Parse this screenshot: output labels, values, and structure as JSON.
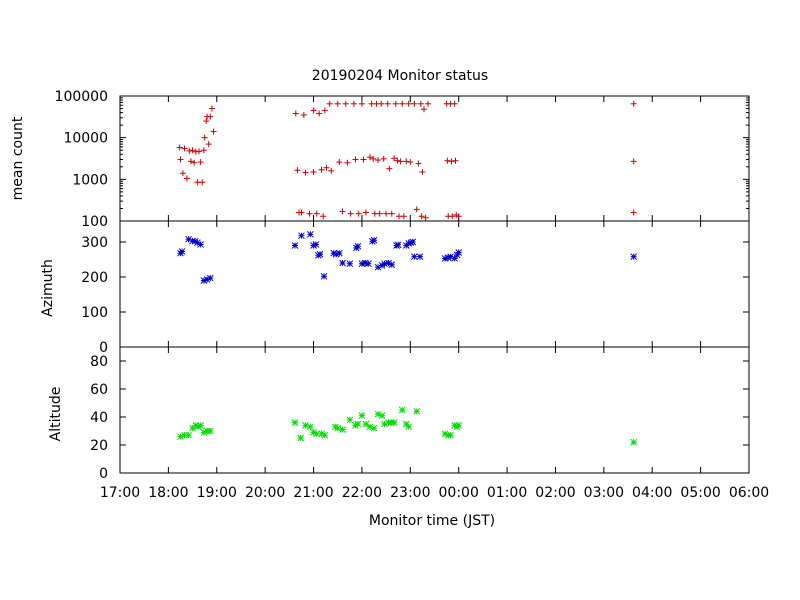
{
  "chart_data": {
    "type": "scatter",
    "title": "20190204 Monitor status",
    "xlabel": "Monitor time (JST)",
    "x_tick_labels": [
      "17:00",
      "18:00",
      "19:00",
      "20:00",
      "21:00",
      "22:00",
      "23:00",
      "00:00",
      "01:00",
      "02:00",
      "03:00",
      "04:00",
      "05:00",
      "06:00"
    ],
    "xlim": [
      "17:00",
      "06:00"
    ],
    "grid": false,
    "panels": [
      {
        "ylabel": "mean count",
        "yscale": "log",
        "ylim": [
          100,
          100000
        ],
        "y_tick_labels": [
          "100",
          "1000",
          "10000",
          "100000"
        ],
        "marker": "+",
        "color": "#cc0000",
        "points": [
          [
            "18:14",
            5800
          ],
          [
            "18:15",
            3000
          ],
          [
            "18:18",
            1400
          ],
          [
            "18:20",
            5500
          ],
          [
            "18:23",
            1050
          ],
          [
            "18:26",
            4800
          ],
          [
            "18:28",
            2700
          ],
          [
            "18:30",
            5000
          ],
          [
            "18:32",
            2500
          ],
          [
            "18:34",
            4600
          ],
          [
            "18:36",
            850
          ],
          [
            "18:38",
            4700
          ],
          [
            "18:40",
            2600
          ],
          [
            "18:42",
            850
          ],
          [
            "18:44",
            5000
          ],
          [
            "18:45",
            10000
          ],
          [
            "18:47",
            25000
          ],
          [
            "18:48",
            32000
          ],
          [
            "18:50",
            7000
          ],
          [
            "18:52",
            32000
          ],
          [
            "18:54",
            50000
          ],
          [
            "18:56",
            14000
          ],
          [
            "20:38",
            38000
          ],
          [
            "20:40",
            1650
          ],
          [
            "20:42",
            160
          ],
          [
            "20:45",
            160
          ],
          [
            "20:48",
            35000
          ],
          [
            "20:50",
            1450
          ],
          [
            "20:55",
            150
          ],
          [
            "21:00",
            45000
          ],
          [
            "21:00",
            1500
          ],
          [
            "21:04",
            150
          ],
          [
            "21:07",
            38000
          ],
          [
            "21:10",
            1700
          ],
          [
            "21:12",
            130
          ],
          [
            "21:14",
            45000
          ],
          [
            "21:16",
            1900
          ],
          [
            "21:20",
            65000
          ],
          [
            "21:22",
            1600
          ],
          [
            "21:30",
            65000
          ],
          [
            "21:32",
            2600
          ],
          [
            "21:36",
            170
          ],
          [
            "21:40",
            65000
          ],
          [
            "21:42",
            2500
          ],
          [
            "21:46",
            150
          ],
          [
            "21:50",
            65000
          ],
          [
            "21:52",
            3000
          ],
          [
            "21:56",
            150
          ],
          [
            "22:00",
            65000
          ],
          [
            "22:02",
            3000
          ],
          [
            "22:05",
            160
          ],
          [
            "22:10",
            3400
          ],
          [
            "22:12",
            65000
          ],
          [
            "22:14",
            3100
          ],
          [
            "22:16",
            150
          ],
          [
            "22:18",
            65000
          ],
          [
            "22:20",
            2900
          ],
          [
            "22:22",
            150
          ],
          [
            "22:24",
            65000
          ],
          [
            "22:27",
            3100
          ],
          [
            "22:30",
            150
          ],
          [
            "22:32",
            65000
          ],
          [
            "22:34",
            1800
          ],
          [
            "22:37",
            150
          ],
          [
            "22:40",
            3200
          ],
          [
            "22:42",
            65000
          ],
          [
            "22:44",
            2800
          ],
          [
            "22:46",
            130
          ],
          [
            "22:48",
            2700
          ],
          [
            "22:50",
            65000
          ],
          [
            "22:52",
            130
          ],
          [
            "22:55",
            2700
          ],
          [
            "22:58",
            65000
          ],
          [
            "23:00",
            2600
          ],
          [
            "23:05",
            65000
          ],
          [
            "23:08",
            190
          ],
          [
            "23:10",
            2400
          ],
          [
            "23:13",
            65000
          ],
          [
            "23:14",
            130
          ],
          [
            "23:15",
            1500
          ],
          [
            "23:17",
            48000
          ],
          [
            "23:19",
            120
          ],
          [
            "23:22",
            65000
          ],
          [
            "23:45",
            65000
          ],
          [
            "23:46",
            2800
          ],
          [
            "23:47",
            130
          ],
          [
            "23:50",
            65000
          ],
          [
            "23:51",
            2700
          ],
          [
            "23:52",
            130
          ],
          [
            "23:55",
            65000
          ],
          [
            "23:56",
            2800
          ],
          [
            "23:57",
            140
          ],
          [
            "00:00",
            130
          ],
          [
            "03:37",
            65000
          ],
          [
            "03:37",
            2700
          ],
          [
            "03:37",
            160
          ]
        ]
      },
      {
        "ylabel": "Azimuth",
        "yscale": "linear",
        "ylim": [
          0,
          360
        ],
        "y_tick_labels": [
          "0",
          "100",
          "200",
          "300"
        ],
        "marker": "*",
        "color": "#0000cc",
        "points": [
          [
            "18:15",
            268
          ],
          [
            "18:17",
            273
          ],
          [
            "18:25",
            308
          ],
          [
            "18:30",
            303
          ],
          [
            "18:33",
            302
          ],
          [
            "18:36",
            298
          ],
          [
            "18:40",
            293
          ],
          [
            "18:44",
            190
          ],
          [
            "18:48",
            193
          ],
          [
            "18:52",
            197
          ],
          [
            "20:37",
            290
          ],
          [
            "20:45",
            318
          ],
          [
            "20:56",
            322
          ],
          [
            "21:00",
            290
          ],
          [
            "21:03",
            293
          ],
          [
            "21:06",
            262
          ],
          [
            "21:08",
            265
          ],
          [
            "21:13",
            202
          ],
          [
            "21:25",
            268
          ],
          [
            "21:28",
            265
          ],
          [
            "21:32",
            268
          ],
          [
            "21:36",
            240
          ],
          [
            "21:45",
            238
          ],
          [
            "21:53",
            283
          ],
          [
            "21:55",
            288
          ],
          [
            "22:00",
            238
          ],
          [
            "22:04",
            240
          ],
          [
            "22:08",
            238
          ],
          [
            "22:13",
            302
          ],
          [
            "22:15",
            305
          ],
          [
            "22:20",
            228
          ],
          [
            "22:25",
            233
          ],
          [
            "22:28",
            238
          ],
          [
            "22:33",
            240
          ],
          [
            "22:37",
            235
          ],
          [
            "22:43",
            290
          ],
          [
            "22:45",
            292
          ],
          [
            "22:55",
            290
          ],
          [
            "22:58",
            296
          ],
          [
            "23:01",
            298
          ],
          [
            "23:03",
            300
          ],
          [
            "23:05",
            258
          ],
          [
            "23:12",
            258
          ],
          [
            "23:43",
            253
          ],
          [
            "23:47",
            255
          ],
          [
            "23:50",
            258
          ],
          [
            "23:55",
            253
          ],
          [
            "23:58",
            263
          ],
          [
            "00:00",
            270
          ],
          [
            "03:37",
            258
          ]
        ]
      },
      {
        "ylabel": "Altitude",
        "yscale": "linear",
        "ylim": [
          0,
          90
        ],
        "y_tick_labels": [
          "0",
          "20",
          "40",
          "60",
          "80"
        ],
        "marker": "*",
        "color": "#00dd00",
        "points": [
          [
            "18:15",
            26
          ],
          [
            "18:20",
            27
          ],
          [
            "18:25",
            27
          ],
          [
            "18:30",
            32
          ],
          [
            "18:34",
            34
          ],
          [
            "18:37",
            33
          ],
          [
            "18:40",
            34
          ],
          [
            "18:44",
            29
          ],
          [
            "18:48",
            30
          ],
          [
            "18:52",
            30
          ],
          [
            "20:37",
            36
          ],
          [
            "20:44",
            25
          ],
          [
            "20:50",
            34
          ],
          [
            "20:56",
            33
          ],
          [
            "21:00",
            29
          ],
          [
            "21:04",
            28
          ],
          [
            "21:10",
            28
          ],
          [
            "21:14",
            27
          ],
          [
            "21:27",
            33
          ],
          [
            "21:30",
            32
          ],
          [
            "21:36",
            31
          ],
          [
            "21:45",
            38
          ],
          [
            "21:52",
            34
          ],
          [
            "21:55",
            35
          ],
          [
            "22:00",
            41
          ],
          [
            "22:05",
            35
          ],
          [
            "22:10",
            33
          ],
          [
            "22:15",
            32
          ],
          [
            "22:20",
            42
          ],
          [
            "22:25",
            41
          ],
          [
            "22:28",
            35
          ],
          [
            "22:33",
            36
          ],
          [
            "22:36",
            36
          ],
          [
            "22:40",
            36
          ],
          [
            "22:50",
            45
          ],
          [
            "22:55",
            35
          ],
          [
            "22:58",
            33
          ],
          [
            "23:08",
            44
          ],
          [
            "23:43",
            28
          ],
          [
            "23:47",
            27
          ],
          [
            "23:50",
            27
          ],
          [
            "23:55",
            34
          ],
          [
            "23:58",
            33
          ],
          [
            "00:00",
            34
          ],
          [
            "03:37",
            22
          ]
        ]
      }
    ]
  }
}
